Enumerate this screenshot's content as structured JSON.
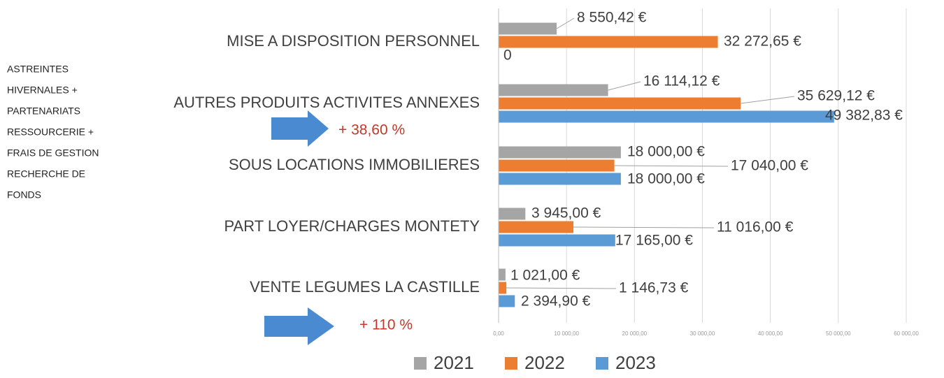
{
  "chart_data": {
    "type": "bar",
    "orientation": "horizontal",
    "categories": [
      "MISE A DISPOSITION PERSONNEL",
      "AUTRES PRODUITS ACTIVITES ANNEXES",
      "SOUS LOCATIONS IMMOBILIERES",
      "PART LOYER/CHARGES MONTETY",
      "VENTE LEGUMES LA CASTILLE"
    ],
    "series": [
      {
        "name": "2021",
        "color": "#a5a5a5",
        "values": [
          8550.42,
          16114.12,
          18000,
          3945,
          1021
        ],
        "value_labels": [
          "8 550,42 €",
          "16 114,12 €",
          "18 000,00 €",
          "3 945,00 €",
          "1 021,00 €"
        ]
      },
      {
        "name": "2022",
        "color": "#ed7d31",
        "values": [
          32272.65,
          35629.12,
          17040,
          11016,
          1146.73
        ],
        "value_labels": [
          "32 272,65 €",
          "35 629,12 €",
          "17 040,00 €",
          "11 016,00 €",
          "1 146,73 €"
        ]
      },
      {
        "name": "2023",
        "color": "#5b9bd5",
        "values": [
          0,
          49382.83,
          18000,
          17165,
          2394.9
        ],
        "value_labels": [
          "0",
          "49 382,83 €",
          "18 000,00 €",
          "17 165,00 €",
          "2 394,90 €"
        ]
      }
    ],
    "xlim": [
      0,
      60000
    ],
    "xticks": [
      {
        "value": 0,
        "label": "0,00"
      },
      {
        "value": 10000,
        "label": "10 000,00"
      },
      {
        "value": 20000,
        "label": "20 000,00"
      },
      {
        "value": 30000,
        "label": "30 000,00"
      },
      {
        "value": 40000,
        "label": "40 000,00"
      },
      {
        "value": 50000,
        "label": "50 000,00"
      },
      {
        "value": 60000,
        "label": "60 000,00"
      }
    ],
    "grid": true,
    "legend": "bottom",
    "annotations": {
      "side_note": [
        "ASTREINTES",
        "HIVERNALES +",
        "PARTENARIATS",
        "RESSOURCERIE +",
        "FRAIS DE GESTION",
        "RECHERCHE DE",
        "FONDS"
      ],
      "growth": [
        "+ 38,60 %",
        "+ 110 %"
      ]
    }
  }
}
